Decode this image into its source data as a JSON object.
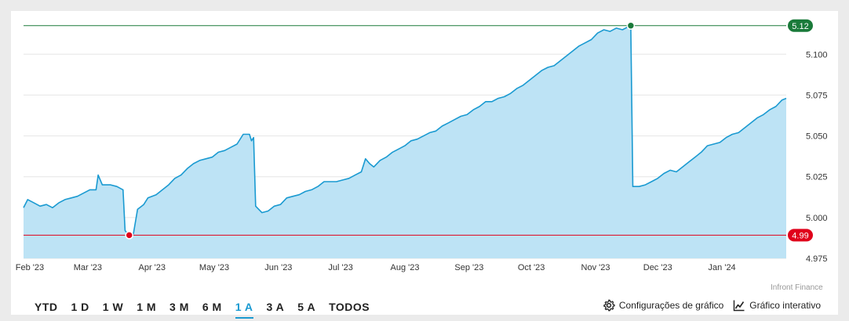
{
  "chart_data": {
    "type": "area",
    "x_ticks": [
      "Feb '23",
      "Mar '23",
      "Apr '23",
      "May '23",
      "Jun '23",
      "Jul '23",
      "Aug '23",
      "Sep '23",
      "Oct '23",
      "Nov '23",
      "Dec '23",
      "Jan '24"
    ],
    "y_ticks": [
      "5.100",
      "5.075",
      "5.050",
      "5.025",
      "5.000",
      "4.975"
    ],
    "ylim": [
      4.975,
      5.1265
    ],
    "max_marker": {
      "label": "5.12",
      "value": 5.1175,
      "date": "2023-11-18"
    },
    "min_marker": {
      "label": "4.99",
      "value": 4.9892,
      "date": "2023-03-21"
    },
    "series": [
      {
        "points": [
          [
            "2023-01-29",
            5.006
          ],
          [
            "2023-01-31",
            5.011
          ],
          [
            "2023-02-03",
            5.009
          ],
          [
            "2023-02-06",
            5.007
          ],
          [
            "2023-02-09",
            5.008
          ],
          [
            "2023-02-12",
            5.006
          ],
          [
            "2023-02-15",
            5.009
          ],
          [
            "2023-02-18",
            5.011
          ],
          [
            "2023-02-21",
            5.012
          ],
          [
            "2023-02-24",
            5.013
          ],
          [
            "2023-02-27",
            5.015
          ],
          [
            "2023-03-02",
            5.017
          ],
          [
            "2023-03-05",
            5.017
          ],
          [
            "2023-03-06",
            5.026
          ],
          [
            "2023-03-08",
            5.02
          ],
          [
            "2023-03-12",
            5.02
          ],
          [
            "2023-03-15",
            5.019
          ],
          [
            "2023-03-18",
            5.017
          ],
          [
            "2023-03-19",
            4.992
          ],
          [
            "2023-03-21",
            4.989
          ],
          [
            "2023-03-23",
            4.99
          ],
          [
            "2023-03-25",
            5.005
          ],
          [
            "2023-03-28",
            5.008
          ],
          [
            "2023-03-30",
            5.012
          ],
          [
            "2023-04-03",
            5.014
          ],
          [
            "2023-04-06",
            5.017
          ],
          [
            "2023-04-09",
            5.02
          ],
          [
            "2023-04-12",
            5.024
          ],
          [
            "2023-04-15",
            5.026
          ],
          [
            "2023-04-18",
            5.03
          ],
          [
            "2023-04-21",
            5.033
          ],
          [
            "2023-04-24",
            5.035
          ],
          [
            "2023-04-27",
            5.036
          ],
          [
            "2023-04-30",
            5.037
          ],
          [
            "2023-05-03",
            5.04
          ],
          [
            "2023-05-06",
            5.041
          ],
          [
            "2023-05-09",
            5.043
          ],
          [
            "2023-05-12",
            5.045
          ],
          [
            "2023-05-15",
            5.051
          ],
          [
            "2023-05-18",
            5.051
          ],
          [
            "2023-05-19",
            5.047
          ],
          [
            "2023-05-20",
            5.049
          ],
          [
            "2023-05-21",
            5.007
          ],
          [
            "2023-05-24",
            5.003
          ],
          [
            "2023-05-27",
            5.004
          ],
          [
            "2023-05-30",
            5.007
          ],
          [
            "2023-06-02",
            5.008
          ],
          [
            "2023-06-05",
            5.012
          ],
          [
            "2023-06-08",
            5.013
          ],
          [
            "2023-06-11",
            5.014
          ],
          [
            "2023-06-14",
            5.016
          ],
          [
            "2023-06-17",
            5.017
          ],
          [
            "2023-06-20",
            5.019
          ],
          [
            "2023-06-23",
            5.022
          ],
          [
            "2023-06-26",
            5.022
          ],
          [
            "2023-06-29",
            5.022
          ],
          [
            "2023-07-02",
            5.023
          ],
          [
            "2023-07-05",
            5.024
          ],
          [
            "2023-07-08",
            5.026
          ],
          [
            "2023-07-11",
            5.028
          ],
          [
            "2023-07-13",
            5.036
          ],
          [
            "2023-07-15",
            5.033
          ],
          [
            "2023-07-17",
            5.031
          ],
          [
            "2023-07-20",
            5.035
          ],
          [
            "2023-07-23",
            5.037
          ],
          [
            "2023-07-26",
            5.04
          ],
          [
            "2023-07-29",
            5.042
          ],
          [
            "2023-08-01",
            5.044
          ],
          [
            "2023-08-04",
            5.047
          ],
          [
            "2023-08-07",
            5.048
          ],
          [
            "2023-08-10",
            5.05
          ],
          [
            "2023-08-13",
            5.052
          ],
          [
            "2023-08-16",
            5.053
          ],
          [
            "2023-08-19",
            5.056
          ],
          [
            "2023-08-22",
            5.058
          ],
          [
            "2023-08-25",
            5.06
          ],
          [
            "2023-08-28",
            5.062
          ],
          [
            "2023-08-31",
            5.063
          ],
          [
            "2023-09-03",
            5.066
          ],
          [
            "2023-09-06",
            5.068
          ],
          [
            "2023-09-09",
            5.071
          ],
          [
            "2023-09-12",
            5.071
          ],
          [
            "2023-09-15",
            5.073
          ],
          [
            "2023-09-18",
            5.074
          ],
          [
            "2023-09-21",
            5.076
          ],
          [
            "2023-09-24",
            5.079
          ],
          [
            "2023-09-27",
            5.081
          ],
          [
            "2023-09-30",
            5.084
          ],
          [
            "2023-10-03",
            5.087
          ],
          [
            "2023-10-06",
            5.09
          ],
          [
            "2023-10-09",
            5.092
          ],
          [
            "2023-10-12",
            5.093
          ],
          [
            "2023-10-15",
            5.096
          ],
          [
            "2023-10-18",
            5.099
          ],
          [
            "2023-10-21",
            5.102
          ],
          [
            "2023-10-24",
            5.105
          ],
          [
            "2023-10-27",
            5.107
          ],
          [
            "2023-10-30",
            5.109
          ],
          [
            "2023-11-02",
            5.113
          ],
          [
            "2023-11-05",
            5.115
          ],
          [
            "2023-11-08",
            5.114
          ],
          [
            "2023-11-11",
            5.116
          ],
          [
            "2023-11-14",
            5.115
          ],
          [
            "2023-11-17",
            5.117
          ],
          [
            "2023-11-18",
            5.117
          ],
          [
            "2023-11-19",
            5.019
          ],
          [
            "2023-11-22",
            5.019
          ],
          [
            "2023-11-25",
            5.02
          ],
          [
            "2023-11-28",
            5.022
          ],
          [
            "2023-12-01",
            5.024
          ],
          [
            "2023-12-04",
            5.027
          ],
          [
            "2023-12-07",
            5.029
          ],
          [
            "2023-12-10",
            5.028
          ],
          [
            "2023-12-13",
            5.031
          ],
          [
            "2023-12-16",
            5.034
          ],
          [
            "2023-12-19",
            5.037
          ],
          [
            "2023-12-22",
            5.04
          ],
          [
            "2023-12-25",
            5.044
          ],
          [
            "2023-12-28",
            5.045
          ],
          [
            "2023-12-31",
            5.046
          ],
          [
            "2024-01-03",
            5.049
          ],
          [
            "2024-01-06",
            5.051
          ],
          [
            "2024-01-09",
            5.052
          ],
          [
            "2024-01-12",
            5.055
          ],
          [
            "2024-01-15",
            5.058
          ],
          [
            "2024-01-18",
            5.061
          ],
          [
            "2024-01-21",
            5.063
          ],
          [
            "2024-01-24",
            5.066
          ],
          [
            "2024-01-27",
            5.068
          ],
          [
            "2024-01-30",
            5.072
          ],
          [
            "2024-02-01",
            5.073
          ]
        ]
      }
    ],
    "colors": {
      "line": "#1a9ad1",
      "fill": "#bde3f5",
      "max": "#1a7a3a",
      "min": "#e0001b",
      "grid": "#e6e6e6"
    }
  },
  "source": "Infront Finance",
  "ranges": [
    {
      "label": "YTD",
      "active": false
    },
    {
      "label": "1 D",
      "active": false
    },
    {
      "label": "1 W",
      "active": false
    },
    {
      "label": "1 M",
      "active": false
    },
    {
      "label": "3 M",
      "active": false
    },
    {
      "label": "6 M",
      "active": false
    },
    {
      "label": "1 A",
      "active": true
    },
    {
      "label": "3 A",
      "active": false
    },
    {
      "label": "5 A",
      "active": false
    },
    {
      "label": "TODOS",
      "active": false
    }
  ],
  "tools": {
    "settings_label": "Configurações de gráfico",
    "settings_icon": "gear-icon",
    "interactive_label": "Gráfico interativo",
    "interactive_icon": "line-chart-icon"
  }
}
